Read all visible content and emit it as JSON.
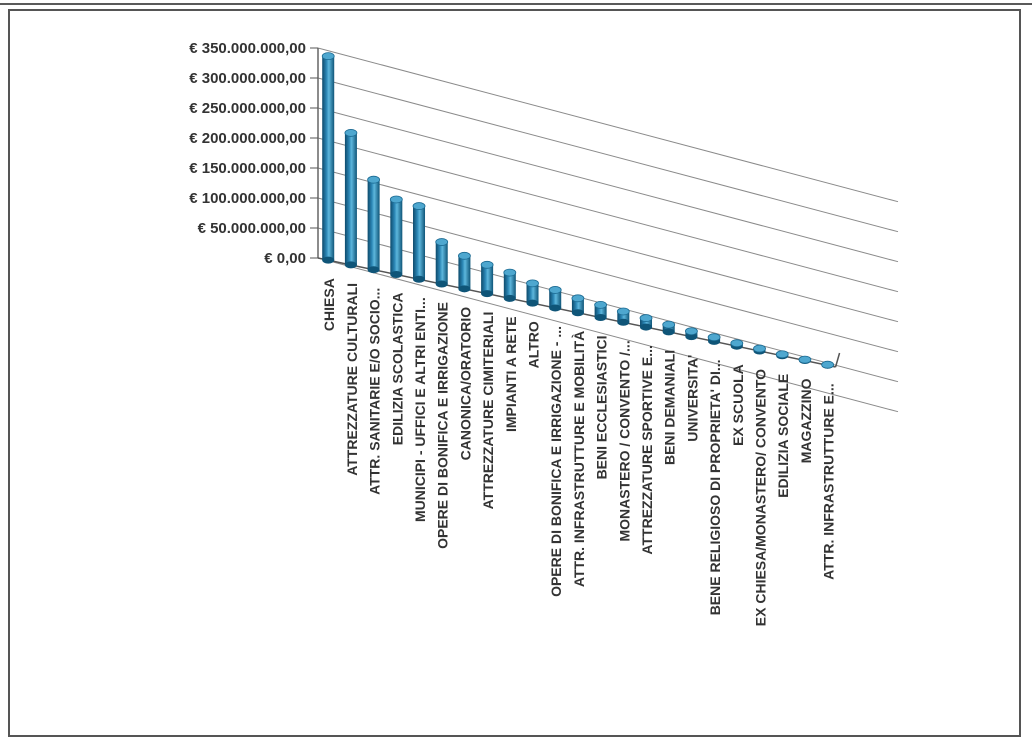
{
  "chart_data": {
    "type": "bar",
    "style": "3d-cylinder-column",
    "title": "",
    "xlabel": "",
    "ylabel": "",
    "ylim": [
      0,
      350000000
    ],
    "y_ticks": [
      "€ 350.000.000,00",
      "€ 300.000.000,00",
      "€ 250.000.000,00",
      "€ 200.000.000,00",
      "€ 150.000.000,00",
      "€ 100.000.000,00",
      "€ 50.000.000,00",
      "€ 0,00"
    ],
    "grid": true,
    "legend": "none",
    "bar_color": "#1f6e99",
    "bar_highlight": "#4ea7cf",
    "categories": [
      "CHIESA",
      "ATTREZZATURE CULTURALI",
      "ATTR. SANITARIE E/O SOCIO...",
      "EDILIZIA SCOLASTICA",
      "MUNICIPI - UFFICI E ALTRI ENTI...",
      "OPERE DI BONIFICA E IRRIGAZIONE",
      "CANONICA/ORATORIO",
      "ATTREZZATURE CIMITERIALI",
      "IMPIANTI A RETE",
      "ALTRO",
      "OPERE DI BONIFICA E IRRIGAZIONE - ...",
      "ATTR. INFRASTRUTTURE E MOBILITÀ",
      "BENI ECCLESIASTICI",
      "MONASTERO / CONVENTO /...",
      "ATTREZZATURE SPORTIVE E...",
      "BENI DEMANIALI",
      "UNIVERSITA'",
      "BENE RELIGIOSO DI PROPRIETA' DI...",
      "EX SCUOLA",
      "EX CHIESA/MONASTERO/ CONVENTO",
      "EDILIZIA SOCIALE",
      "MAGAZZINO",
      "ATTR. INFRASTRUTTURE E..."
    ],
    "values": [
      340000000,
      220000000,
      150000000,
      125000000,
      122000000,
      70000000,
      55000000,
      48000000,
      43000000,
      33000000,
      30000000,
      24000000,
      21000000,
      18000000,
      15000000,
      12000000,
      9000000,
      7000000,
      5000000,
      4000000,
      2500000,
      1500000,
      1000000
    ]
  }
}
